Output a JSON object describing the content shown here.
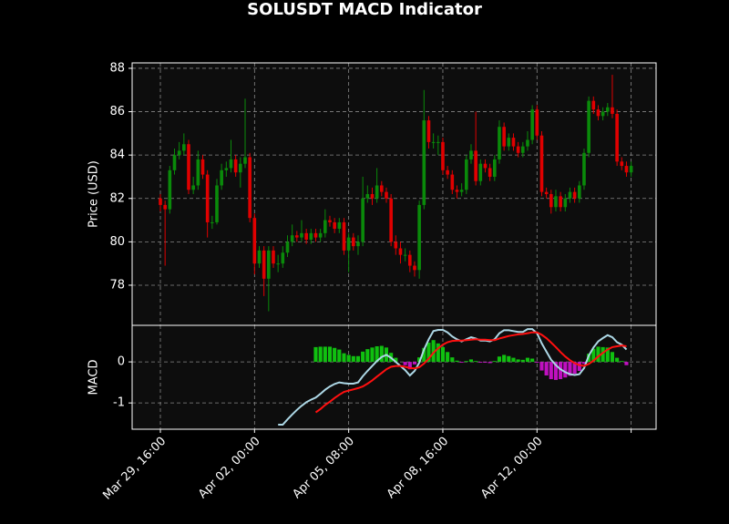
{
  "chart_data": [
    {
      "type": "candlestick",
      "title": "SOLUSDT MACD Indicator",
      "ylabel": "Price (USD)",
      "open": [
        82.0,
        81.7,
        81.5,
        83.3,
        84.0,
        84.2,
        84.5,
        82.4,
        82.6,
        83.8,
        83.1,
        80.9,
        80.9,
        82.6,
        83.3,
        83.4,
        83.8,
        83.2,
        83.6,
        83.9,
        81.1,
        79.0,
        79.6,
        78.3,
        79.6,
        79.0,
        79.0,
        79.5,
        80.0,
        80.3,
        80.2,
        80.4,
        80.1,
        80.4,
        80.2,
        80.4,
        81.0,
        80.9,
        80.6,
        80.9,
        79.6,
        80.2,
        79.8,
        80.0,
        82.0,
        82.2,
        82.0,
        82.6,
        82.3,
        82.0,
        80.0,
        79.7,
        79.4,
        79.4,
        78.9,
        78.7,
        81.7,
        85.6,
        84.6,
        84.6,
        84.6,
        83.3,
        83.1,
        82.4,
        82.3,
        82.4,
        83.8,
        84.2,
        82.8,
        83.6,
        83.4,
        83.0,
        83.8,
        85.3,
        84.4,
        84.8,
        84.4,
        84.1,
        84.4,
        84.7,
        86.1,
        84.9,
        82.3,
        82.2,
        81.6,
        82.1,
        81.6,
        82.0,
        82.3,
        82.0,
        82.6,
        84.1,
        86.5,
        86.1,
        85.8,
        86.0,
        86.2,
        85.9,
        83.7,
        83.5,
        83.2
      ],
      "high": [
        82.2,
        81.9,
        83.5,
        84.3,
        84.6,
        85.0,
        84.7,
        83.0,
        84.2,
        84.0,
        83.3,
        81.2,
        82.9,
        83.6,
        83.7,
        84.7,
        84.0,
        83.9,
        86.6,
        84.1,
        81.3,
        79.8,
        79.8,
        79.8,
        79.8,
        79.4,
        79.8,
        80.3,
        80.8,
        80.5,
        81.0,
        80.6,
        80.6,
        80.6,
        80.6,
        81.5,
        81.2,
        81.1,
        81.1,
        81.1,
        80.4,
        80.4,
        80.3,
        83.0,
        82.6,
        82.5,
        83.4,
        82.8,
        82.5,
        82.2,
        80.3,
        80.0,
        79.7,
        79.6,
        79.1,
        81.9,
        87.0,
        85.8,
        85.0,
        84.9,
        84.8,
        83.5,
        83.3,
        82.6,
        82.7,
        84.0,
        84.5,
        86.0,
        83.8,
        83.8,
        83.6,
        84.0,
        85.6,
        85.5,
        85.0,
        85.0,
        84.6,
        84.6,
        85.1,
        86.3,
        86.3,
        85.1,
        82.5,
        82.4,
        82.4,
        82.3,
        82.2,
        82.5,
        82.5,
        82.8,
        84.3,
        86.7,
        86.7,
        86.3,
        86.2,
        86.4,
        87.7,
        86.1,
        83.9,
        83.7,
        83.7
      ],
      "low": [
        81.4,
        78.9,
        81.3,
        83.1,
        83.8,
        84.0,
        82.2,
        82.2,
        82.4,
        82.9,
        80.2,
        80.6,
        80.8,
        82.4,
        83.0,
        83.2,
        83.0,
        82.5,
        83.4,
        80.9,
        78.5,
        78.8,
        77.5,
        76.8,
        78.8,
        78.6,
        78.8,
        79.3,
        79.8,
        80.0,
        80.0,
        79.9,
        79.9,
        80.0,
        80.0,
        80.2,
        80.7,
        80.4,
        80.4,
        79.4,
        78.6,
        79.6,
        79.4,
        79.8,
        81.8,
        81.7,
        81.8,
        82.1,
        81.8,
        79.8,
        79.4,
        79.0,
        79.1,
        78.6,
        78.4,
        78.3,
        81.5,
        84.3,
        84.3,
        84.0,
        83.1,
        82.9,
        82.2,
        82.0,
        82.1,
        82.2,
        83.6,
        82.6,
        82.6,
        83.2,
        82.8,
        82.8,
        83.6,
        84.2,
        84.2,
        84.2,
        83.9,
        83.9,
        84.2,
        84.5,
        84.7,
        82.1,
        82.0,
        81.3,
        81.4,
        81.4,
        81.4,
        81.8,
        81.8,
        81.8,
        82.4,
        83.9,
        85.9,
        85.6,
        85.6,
        85.8,
        85.7,
        83.5,
        83.3,
        83.0,
        83.0
      ],
      "close": [
        81.7,
        81.5,
        83.3,
        84.0,
        84.2,
        84.5,
        82.4,
        82.6,
        83.8,
        83.1,
        80.9,
        80.9,
        82.6,
        83.3,
        83.4,
        83.8,
        83.2,
        83.6,
        83.9,
        81.1,
        79.0,
        79.6,
        78.3,
        79.6,
        79.0,
        79.0,
        79.5,
        80.0,
        80.3,
        80.2,
        80.4,
        80.1,
        80.4,
        80.2,
        80.4,
        81.0,
        80.9,
        80.6,
        80.9,
        79.6,
        80.2,
        79.8,
        80.0,
        82.0,
        82.2,
        82.0,
        82.6,
        82.3,
        82.0,
        80.0,
        79.7,
        79.4,
        79.4,
        78.9,
        78.7,
        81.7,
        85.6,
        84.6,
        84.6,
        84.6,
        83.3,
        83.1,
        82.4,
        82.3,
        82.4,
        83.8,
        84.2,
        82.8,
        83.6,
        83.4,
        83.0,
        83.8,
        85.3,
        84.4,
        84.8,
        84.4,
        84.1,
        84.4,
        84.7,
        86.1,
        84.9,
        82.3,
        82.2,
        81.6,
        82.1,
        81.6,
        82.0,
        82.3,
        82.0,
        82.6,
        84.1,
        86.5,
        86.1,
        85.8,
        86.0,
        86.2,
        85.9,
        83.7,
        83.5,
        83.2,
        83.5
      ],
      "up_color": "#0a8a0a",
      "down_color": "#e00000",
      "ylim": [
        76.15,
        88.25
      ],
      "yticks": [
        78,
        80,
        82,
        84,
        86,
        88
      ],
      "grid": true
    },
    {
      "type": "macd",
      "ylabel": "MACD",
      "macd": {
        "color": "#add8e6",
        "values": [
          null,
          null,
          null,
          null,
          null,
          null,
          null,
          null,
          null,
          null,
          null,
          null,
          null,
          null,
          null,
          null,
          null,
          null,
          null,
          null,
          null,
          null,
          null,
          null,
          null,
          -1.53,
          -1.53,
          -1.4,
          -1.28,
          -1.17,
          -1.07,
          -0.98,
          -0.92,
          -0.87,
          -0.78,
          -0.68,
          -0.6,
          -0.54,
          -0.5,
          -0.52,
          -0.53,
          -0.53,
          -0.5,
          -0.35,
          -0.22,
          -0.1,
          0.02,
          0.12,
          0.17,
          0.1,
          0.0,
          -0.1,
          -0.2,
          -0.33,
          -0.22,
          -0.02,
          0.3,
          0.55,
          0.75,
          0.78,
          0.78,
          0.72,
          0.62,
          0.55,
          0.5,
          0.55,
          0.6,
          0.57,
          0.52,
          0.52,
          0.5,
          0.55,
          0.7,
          0.77,
          0.77,
          0.75,
          0.73,
          0.73,
          0.8,
          0.8,
          0.7,
          0.45,
          0.25,
          0.05,
          -0.08,
          -0.18,
          -0.25,
          -0.3,
          -0.32,
          -0.3,
          -0.15,
          0.15,
          0.35,
          0.5,
          0.58,
          0.65,
          0.6,
          0.48,
          0.42,
          0.3,
          null
        ]
      },
      "signal": {
        "color": "#ff1010",
        "values": [
          null,
          null,
          null,
          null,
          null,
          null,
          null,
          null,
          null,
          null,
          null,
          null,
          null,
          null,
          null,
          null,
          null,
          null,
          null,
          null,
          null,
          null,
          null,
          null,
          null,
          null,
          null,
          null,
          null,
          null,
          null,
          null,
          null,
          -1.23,
          -1.15,
          -1.05,
          -0.97,
          -0.88,
          -0.8,
          -0.73,
          -0.7,
          -0.67,
          -0.64,
          -0.6,
          -0.53,
          -0.45,
          -0.36,
          -0.27,
          -0.18,
          -0.12,
          -0.1,
          -0.1,
          -0.12,
          -0.15,
          -0.16,
          -0.13,
          -0.04,
          0.08,
          0.22,
          0.33,
          0.42,
          0.48,
          0.51,
          0.52,
          0.52,
          0.53,
          0.54,
          0.55,
          0.54,
          0.54,
          0.53,
          0.53,
          0.57,
          0.6,
          0.63,
          0.65,
          0.67,
          0.68,
          0.7,
          0.72,
          0.72,
          0.66,
          0.58,
          0.47,
          0.36,
          0.24,
          0.13,
          0.04,
          -0.03,
          -0.08,
          -0.1,
          -0.05,
          0.03,
          0.13,
          0.22,
          0.3,
          0.36,
          0.38,
          0.4,
          0.38,
          null
        ]
      },
      "histogram": {
        "pos_color": "#10c010",
        "neg_color": "#c010c0",
        "values": [
          null,
          null,
          null,
          null,
          null,
          null,
          null,
          null,
          null,
          null,
          null,
          null,
          null,
          null,
          null,
          null,
          null,
          null,
          null,
          null,
          null,
          null,
          null,
          null,
          null,
          null,
          null,
          null,
          null,
          null,
          null,
          null,
          null,
          0.36,
          0.37,
          0.37,
          0.37,
          0.34,
          0.3,
          0.21,
          0.17,
          0.14,
          0.14,
          0.25,
          0.31,
          0.35,
          0.38,
          0.39,
          0.35,
          0.22,
          0.1,
          0.0,
          -0.08,
          -0.18,
          -0.06,
          0.11,
          0.34,
          0.47,
          0.53,
          0.45,
          0.36,
          0.24,
          0.11,
          0.03,
          -0.02,
          0.02,
          0.06,
          0.02,
          -0.02,
          -0.02,
          -0.03,
          0.02,
          0.13,
          0.17,
          0.14,
          0.1,
          0.06,
          0.05,
          0.1,
          0.08,
          -0.02,
          -0.21,
          -0.33,
          -0.42,
          -0.44,
          -0.42,
          -0.38,
          -0.34,
          -0.29,
          -0.22,
          -0.05,
          0.2,
          0.32,
          0.37,
          0.36,
          0.35,
          0.24,
          0.1,
          0.02,
          -0.08,
          null
        ]
      },
      "ylim": [
        -1.64,
        0.89
      ],
      "yticks": [
        -1,
        0
      ],
      "grid": true,
      "xlim": [
        -6,
        105.3
      ],
      "xticks": [
        {
          "value": 0,
          "label": "Mar 29, 16:00"
        },
        {
          "value": 20,
          "label": "Apr 02, 00:00"
        },
        {
          "value": 40,
          "label": "Apr 05, 08:00"
        },
        {
          "value": 60,
          "label": "Apr 08, 16:00"
        },
        {
          "value": 80,
          "label": "Apr 12, 00:00"
        },
        {
          "value": 100,
          "label": null
        }
      ]
    }
  ]
}
